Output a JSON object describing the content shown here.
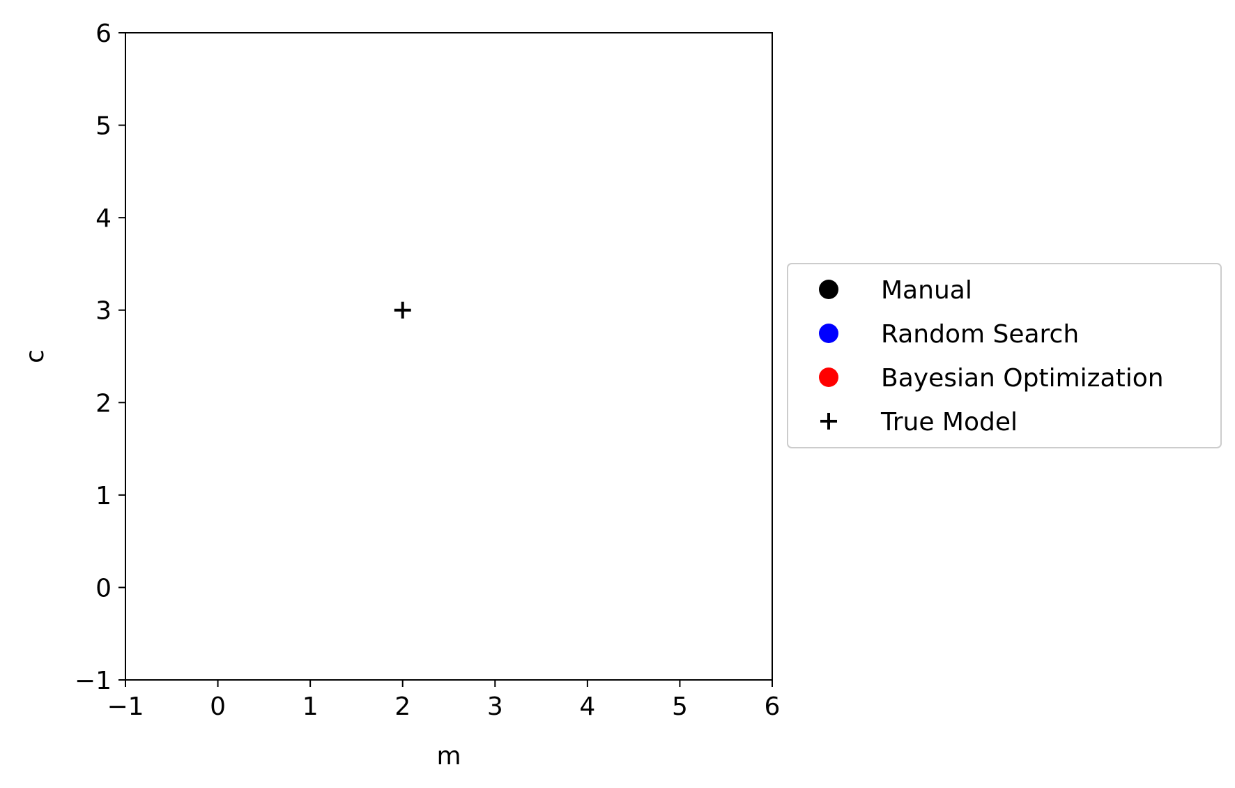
{
  "chart_data": {
    "type": "scatter",
    "xlabel": "m",
    "ylabel": "c",
    "xlim": [
      -1,
      6
    ],
    "ylim": [
      -1,
      6
    ],
    "x_ticks": [
      -1,
      0,
      1,
      2,
      3,
      4,
      5,
      6
    ],
    "y_ticks": [
      -1,
      0,
      1,
      2,
      3,
      4,
      5,
      6
    ],
    "x_tick_labels": [
      "−1",
      "0",
      "1",
      "2",
      "3",
      "4",
      "5",
      "6"
    ],
    "y_tick_labels": [
      "−1",
      "0",
      "1",
      "2",
      "3",
      "4",
      "5",
      "6"
    ],
    "grid": false,
    "legend_placement": "right, outside plot area, vertically centered",
    "series": [
      {
        "name": "Manual",
        "marker": "circle",
        "color": "#000000",
        "points": []
      },
      {
        "name": "Random Search",
        "marker": "circle",
        "color": "#0000ff",
        "points": []
      },
      {
        "name": "Bayesian Optimization",
        "marker": "circle",
        "color": "#ff0000",
        "points": []
      },
      {
        "name": "True Model",
        "marker": "plus",
        "color": "#000000",
        "points": [
          {
            "x": 2,
            "y": 3
          }
        ]
      }
    ]
  }
}
